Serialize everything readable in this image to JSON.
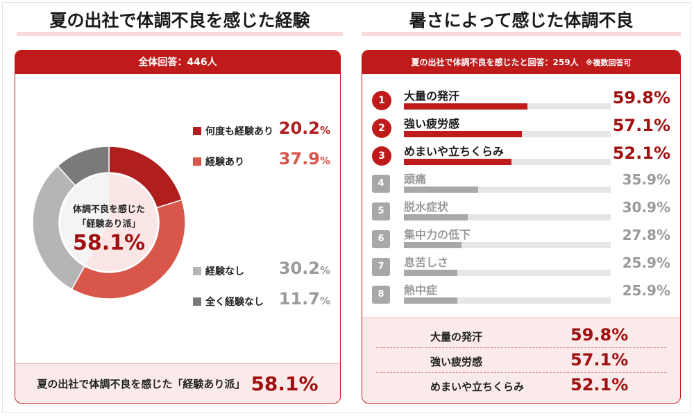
{
  "left_panel": {
    "title": "夏の出社で体調不良を感じた経験",
    "header": "全体回答：446人",
    "donut_center": {
      "line1": "体調不良を感じた",
      "line2": "「経験あり派」",
      "value": "58.1%"
    },
    "footer": {
      "text": "夏の出社で体調不良を感じた「経験あり派」",
      "value": "58.1%"
    }
  },
  "right_panel": {
    "title": "暑さによって感じた体調不良",
    "header_main": "夏の出社で体調不良を感じたと回答：259人",
    "header_note": "※複数回答可",
    "summary": [
      {
        "label": "大量の発汗",
        "value": "59.8%"
      },
      {
        "label": "強い疲労感",
        "value": "57.1%"
      },
      {
        "label": "めまいや立ちくらみ",
        "value": "52.1%"
      }
    ]
  },
  "colors": {
    "accent": "#bf1b1b",
    "dark_red": "#a01010",
    "light_red": "#d9574a",
    "light_gray": "#b5b5b5",
    "dark_gray": "#7a7a7a",
    "pink_bg": "#fbeaea"
  },
  "chart_data": [
    {
      "type": "pie",
      "title": "夏の出社で体調不良を感じた経験",
      "slices": [
        {
          "label": "何度も経験あり",
          "value": 20.2,
          "display": "20.2",
          "color": "#b01e1e"
        },
        {
          "label": "経験あり",
          "value": 37.9,
          "display": "37.9",
          "color": "#d9574a"
        },
        {
          "label": "経験なし",
          "value": 30.2,
          "display": "30.2",
          "color": "#b5b5b5"
        },
        {
          "label": "全く経験なし",
          "value": 11.7,
          "display": "11.7",
          "color": "#7a7a7a"
        }
      ],
      "unit": "%",
      "legend_placement": "right"
    },
    {
      "type": "bar",
      "title": "暑さによって感じた体調不良",
      "categories": [
        "大量の発汗",
        "強い疲労感",
        "めまいや立ちくらみ",
        "頭痛",
        "脱水症状",
        "集中力の低下",
        "息苦しさ",
        "熱中症"
      ],
      "values": [
        59.8,
        57.1,
        52.1,
        35.9,
        30.9,
        27.8,
        25.9,
        25.9
      ],
      "display": [
        "59.8%",
        "57.1%",
        "52.1%",
        "35.9%",
        "30.9%",
        "27.8%",
        "25.9%",
        "25.9%"
      ],
      "ranks": [
        "1",
        "2",
        "3",
        "4",
        "5",
        "6",
        "7",
        "8"
      ],
      "xlim": [
        0,
        100
      ]
    }
  ]
}
